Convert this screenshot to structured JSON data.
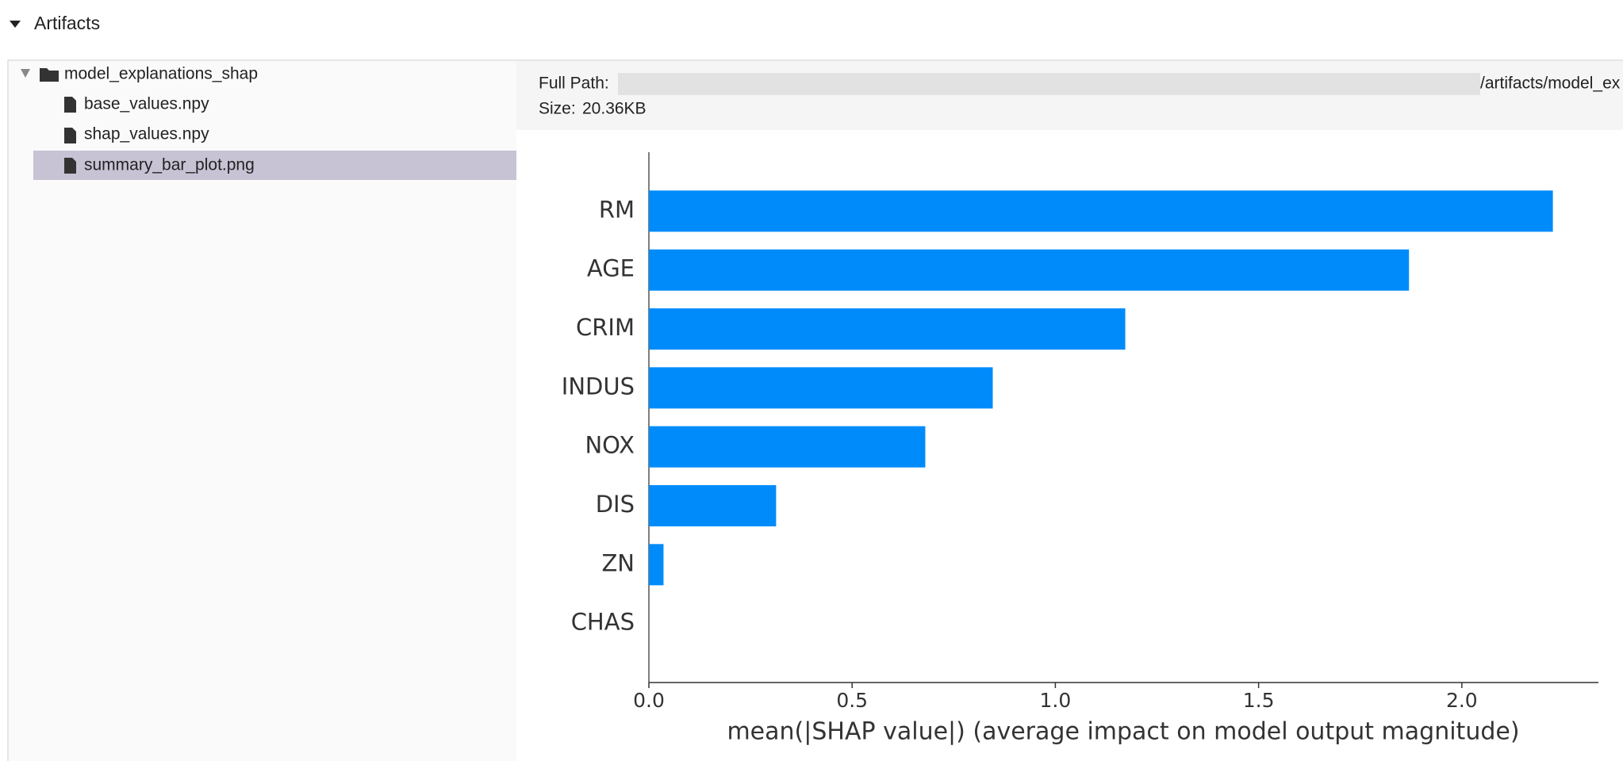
{
  "section_title": "Artifacts",
  "tree": {
    "root": {
      "label": "model_explanations_shap",
      "children": [
        {
          "label": "base_values.npy"
        },
        {
          "label": "shap_values.npy"
        },
        {
          "label": "summary_bar_plot.png"
        }
      ]
    }
  },
  "details": {
    "path_label": "Full Path:",
    "path_visible": "/artifacts/model_ex",
    "size_label": "Size:",
    "size": "20.36KB"
  },
  "chart_data": {
    "type": "bar",
    "orientation": "horizontal",
    "categories": [
      "RM",
      "AGE",
      "CRIM",
      "INDUS",
      "NOX",
      "DIS",
      "ZN",
      "CHAS"
    ],
    "values": [
      2.224,
      1.87,
      1.172,
      0.846,
      0.68,
      0.313,
      0.036,
      0
    ],
    "color": "#008bfb",
    "xlabel": "mean(|SHAP value|) (average impact on model output magnitude)",
    "xlim": [
      0,
      2.336
    ],
    "xticks": [
      {
        "value": 0,
        "label": "0.0"
      },
      {
        "value": 0.5,
        "label": "0.5"
      },
      {
        "value": 1,
        "label": "1.0"
      },
      {
        "value": 1.5,
        "label": "1.5"
      },
      {
        "value": 2,
        "label": "2.0"
      }
    ]
  }
}
